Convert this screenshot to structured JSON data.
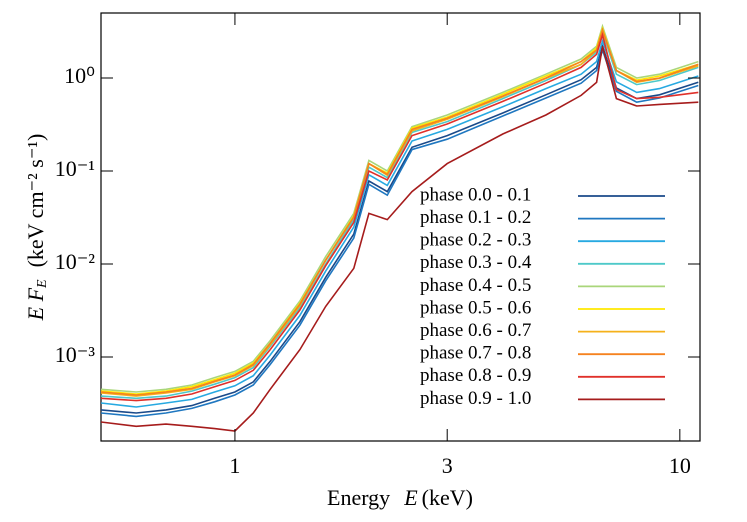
{
  "chart_data": {
    "type": "line",
    "xlabel": [
      "Energy",
      "E",
      "(keV)"
    ],
    "ylabel": [
      "E F",
      "E",
      "(keV cm⁻² s⁻¹)"
    ],
    "xscale": "log",
    "yscale": "log",
    "xlim": [
      0.5,
      11.1
    ],
    "ylim": [
      0.000125,
      5
    ],
    "xticks": [
      1,
      3,
      10
    ],
    "yticks": [
      {
        "value": 0.001,
        "label": "10⁻³"
      },
      {
        "value": 0.01,
        "label": "10⁻²"
      },
      {
        "value": 0.1,
        "label": "10⁻¹"
      },
      {
        "value": 1,
        "label": "10⁰"
      }
    ],
    "legend": "right",
    "x": [
      0.5,
      0.6,
      0.7,
      0.8,
      0.9,
      1.0,
      1.1,
      1.2,
      1.4,
      1.6,
      1.85,
      2.0,
      2.2,
      2.5,
      3.0,
      4.0,
      5.0,
      6.0,
      6.5,
      6.7,
      7.2,
      8.0,
      9.0,
      11.0
    ],
    "series": [
      {
        "name": "phase 0.0 - 0.1",
        "color": "#1a4a8a",
        "values": [
          0.00027,
          0.00025,
          0.00027,
          0.0003,
          0.00036,
          0.00042,
          0.00054,
          0.0009,
          0.0024,
          0.0072,
          0.021,
          0.078,
          0.06,
          0.18,
          0.24,
          0.42,
          0.66,
          0.96,
          1.3,
          2.2,
          0.78,
          0.6,
          0.66,
          0.9
        ]
      },
      {
        "name": "phase 0.1 - 0.2",
        "color": "#1f77c0",
        "values": [
          0.00025,
          0.00023,
          0.00025,
          0.00028,
          0.00033,
          0.00039,
          0.0005,
          0.00083,
          0.0022,
          0.0066,
          0.019,
          0.072,
          0.055,
          0.17,
          0.22,
          0.39,
          0.61,
          0.88,
          1.2,
          2.0,
          0.72,
          0.55,
          0.61,
          0.83
        ]
      },
      {
        "name": "phase 0.2 - 0.3",
        "color": "#27a9e1",
        "values": [
          0.00032,
          0.00029,
          0.00032,
          0.00035,
          0.00042,
          0.00049,
          0.00063,
          0.00105,
          0.0028,
          0.0084,
          0.025,
          0.091,
          0.07,
          0.21,
          0.28,
          0.49,
          0.77,
          1.1,
          1.5,
          2.5,
          0.91,
          0.7,
          0.77,
          1.05
        ]
      },
      {
        "name": "phase 0.3 - 0.4",
        "color": "#4dc9c9",
        "values": [
          0.00038,
          0.00036,
          0.00038,
          0.00043,
          0.00051,
          0.0006,
          0.00077,
          0.0013,
          0.0034,
          0.01,
          0.03,
          0.11,
          0.085,
          0.26,
          0.34,
          0.6,
          0.94,
          1.4,
          1.9,
          3.1,
          1.1,
          0.85,
          0.94,
          1.3
        ]
      },
      {
        "name": "phase 0.4 - 0.5",
        "color": "#a9d67a",
        "values": [
          0.00045,
          0.00042,
          0.00045,
          0.0005,
          0.0006,
          0.0007,
          0.0009,
          0.0015,
          0.004,
          0.012,
          0.035,
          0.13,
          0.1,
          0.3,
          0.4,
          0.7,
          1.1,
          1.6,
          2.2,
          3.6,
          1.3,
          1.0,
          1.1,
          1.5
        ]
      },
      {
        "name": "phase 0.5 - 0.6",
        "color": "#ffe800",
        "values": [
          0.00043,
          0.0004,
          0.00043,
          0.00048,
          0.00057,
          0.00067,
          0.00086,
          0.0014,
          0.0038,
          0.011,
          0.033,
          0.12,
          0.095,
          0.29,
          0.38,
          0.67,
          1.05,
          1.5,
          2.1,
          3.4,
          1.2,
          0.95,
          1.05,
          1.4
        ]
      },
      {
        "name": "phase 0.6 - 0.7",
        "color": "#f5b11b",
        "values": [
          0.00041,
          0.00038,
          0.00041,
          0.00045,
          0.00054,
          0.00063,
          0.00081,
          0.00135,
          0.0036,
          0.011,
          0.032,
          0.12,
          0.09,
          0.27,
          0.36,
          0.63,
          0.99,
          1.4,
          2.0,
          3.2,
          1.2,
          0.9,
          0.99,
          1.35
        ]
      },
      {
        "name": "phase 0.7 - 0.8",
        "color": "#f5821f",
        "values": [
          0.00042,
          0.00039,
          0.00042,
          0.00046,
          0.00055,
          0.00064,
          0.00083,
          0.0014,
          0.0037,
          0.011,
          0.032,
          0.12,
          0.092,
          0.28,
          0.37,
          0.64,
          1.0,
          1.5,
          2.0,
          3.3,
          1.2,
          0.92,
          1.0,
          1.4
        ]
      },
      {
        "name": "phase 0.8 - 0.9",
        "color": "#e0302a",
        "values": [
          0.00036,
          0.00034,
          0.00036,
          0.0004,
          0.00048,
          0.00056,
          0.00072,
          0.0012,
          0.0032,
          0.0096,
          0.028,
          0.1,
          0.08,
          0.24,
          0.32,
          0.56,
          0.88,
          1.3,
          1.8,
          2.9,
          0.75,
          0.6,
          0.62,
          0.7
        ]
      },
      {
        "name": "phase 0.9 - 1.0",
        "color": "#a61c1c",
        "values": [
          0.0002,
          0.00018,
          0.00019,
          0.00018,
          0.00017,
          0.00016,
          0.00025,
          0.00045,
          0.0012,
          0.0035,
          0.009,
          0.035,
          0.03,
          0.06,
          0.12,
          0.25,
          0.4,
          0.65,
          0.9,
          2.2,
          0.6,
          0.5,
          0.52,
          0.55
        ]
      }
    ]
  }
}
